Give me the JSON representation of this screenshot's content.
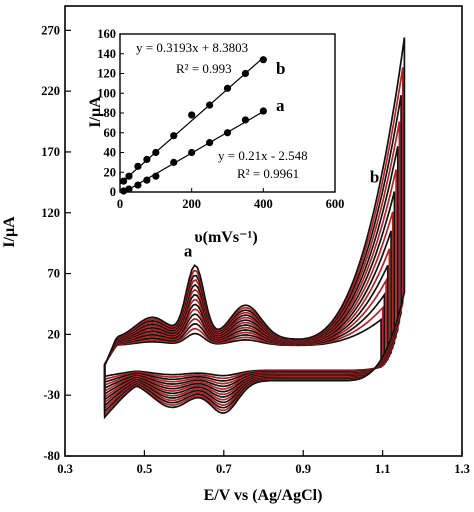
{
  "chart_data": [
    {
      "type": "line",
      "xlabel": "E/V vs (Ag/AgCl)",
      "ylabel": "I/µA",
      "xlim": [
        0.3,
        1.3
      ],
      "ylim": [
        -80,
        290
      ],
      "xticks": [
        "0.3",
        "0.5",
        "0.7",
        "0.9",
        "1.1",
        "1.3"
      ],
      "yticks": [
        "-80",
        "-30",
        "20",
        "70",
        "120",
        "170",
        "220",
        "270"
      ],
      "xtick_values": [
        0.3,
        0.5,
        0.7,
        0.9,
        1.1,
        1.3
      ],
      "ytick_values": [
        -80,
        -30,
        20,
        70,
        120,
        170,
        220,
        270
      ],
      "annotations": [
        {
          "text": "a",
          "x": 0.61,
          "y": 84
        },
        {
          "text": "b",
          "x": 1.08,
          "y": 145
        }
      ],
      "colors": {
        "black": "#111111",
        "red": "#b22222"
      },
      "series": [
        {
          "scale": 0.16,
          "color": "#111111"
        },
        {
          "scale": 0.22,
          "color": "#b22222"
        },
        {
          "scale": 0.28,
          "color": "#111111"
        },
        {
          "scale": 0.34,
          "color": "#b22222"
        },
        {
          "scale": 0.4,
          "color": "#111111"
        },
        {
          "scale": 0.46,
          "color": "#b22222"
        },
        {
          "scale": 0.52,
          "color": "#111111"
        },
        {
          "scale": 0.58,
          "color": "#b22222"
        },
        {
          "scale": 0.64,
          "color": "#111111"
        },
        {
          "scale": 0.7,
          "color": "#b22222"
        },
        {
          "scale": 0.76,
          "color": "#111111"
        },
        {
          "scale": 0.82,
          "color": "#b22222"
        },
        {
          "scale": 0.88,
          "color": "#111111"
        },
        {
          "scale": 0.94,
          "color": "#b22222"
        },
        {
          "scale": 1.0,
          "color": "#111111"
        }
      ],
      "grid": false
    },
    {
      "type": "scatter",
      "xlabel": "υ(mVs⁻¹)",
      "ylabel": "I/µA",
      "xlim": [
        0,
        600
      ],
      "ylim": [
        0,
        160
      ],
      "xticks": [
        "0",
        "200",
        "400",
        "600"
      ],
      "yticks": [
        "0",
        "20",
        "40",
        "60",
        "80",
        "100",
        "120",
        "140",
        "160"
      ],
      "xtick_values": [
        0,
        200,
        400,
        600
      ],
      "ytick_values": [
        0,
        20,
        40,
        60,
        80,
        100,
        120,
        140,
        160
      ],
      "series": [
        {
          "name": "b",
          "x": [
            10,
            25,
            50,
            75,
            100,
            150,
            200,
            250,
            300,
            350,
            400
          ],
          "y": [
            11,
            16,
            26,
            33,
            40,
            57,
            78,
            88,
            105,
            120,
            134
          ],
          "fit": {
            "slope": 0.3193,
            "intercept": 8.3803
          },
          "equation": "y = 0.3193x + 8.3803",
          "r2": "R² = 0.993"
        },
        {
          "name": "a",
          "x": [
            10,
            25,
            50,
            75,
            100,
            150,
            200,
            250,
            300,
            350,
            400
          ],
          "y": [
            1,
            3,
            7,
            12,
            16,
            30,
            40,
            50,
            60,
            73,
            82
          ],
          "fit": {
            "slope": 0.21,
            "intercept": -2.548
          },
          "equation": "y = 0.21x - 2.548",
          "r2": "R² = 0.9961"
        }
      ],
      "grid": false
    }
  ]
}
